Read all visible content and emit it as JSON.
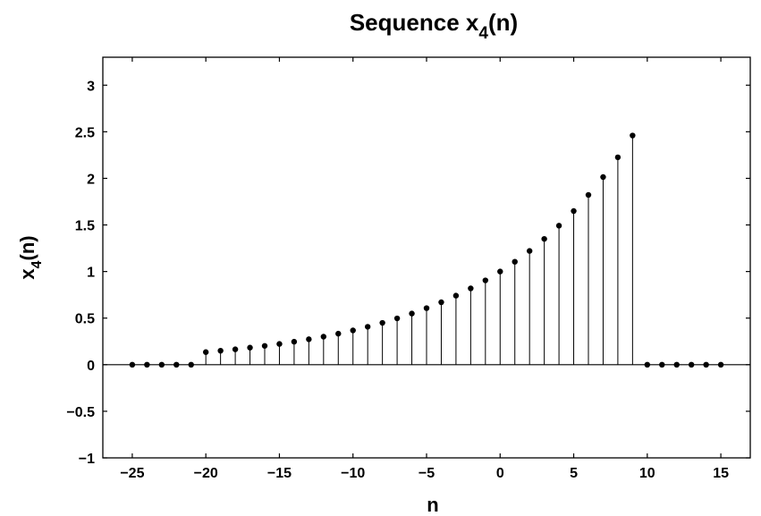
{
  "chart_data": {
    "type": "stem",
    "title": {
      "main": "Sequence x",
      "sub": "4",
      "tail": "(n)"
    },
    "xlabel": "n",
    "ylabel": {
      "main": "x",
      "sub": "4",
      "tail": "(n)"
    },
    "xlim": [
      -27,
      17
    ],
    "ylim": [
      -1,
      3.3
    ],
    "x_ticks": [
      -25,
      -20,
      -15,
      -10,
      -5,
      0,
      5,
      10,
      15
    ],
    "x_tick_labels": [
      "−25",
      "−20",
      "−15",
      "−10",
      "−5",
      "0",
      "5",
      "10",
      "15"
    ],
    "y_ticks": [
      -1,
      -0.5,
      0,
      0.5,
      1,
      1.5,
      2,
      2.5,
      3
    ],
    "y_tick_labels": [
      "−1",
      "−0.5",
      "0",
      "0.5",
      "1",
      "1.5",
      "2",
      "2.5",
      "3"
    ],
    "grid": false,
    "color": "#000000",
    "x": [
      -25,
      -24,
      -23,
      -22,
      -21,
      -20,
      -19,
      -18,
      -17,
      -16,
      -15,
      -14,
      -13,
      -12,
      -11,
      -10,
      -9,
      -8,
      -7,
      -6,
      -5,
      -4,
      -3,
      -2,
      -1,
      0,
      1,
      2,
      3,
      4,
      5,
      6,
      7,
      8,
      9,
      10,
      11,
      12,
      13,
      14,
      15
    ],
    "y": [
      0,
      0,
      0,
      0,
      0,
      0.135,
      0.15,
      0.165,
      0.183,
      0.202,
      0.223,
      0.247,
      0.273,
      0.301,
      0.333,
      0.368,
      0.407,
      0.449,
      0.497,
      0.549,
      0.607,
      0.67,
      0.741,
      0.819,
      0.905,
      1.0,
      1.105,
      1.221,
      1.35,
      1.492,
      1.649,
      1.822,
      2.014,
      2.226,
      2.46,
      0,
      0,
      0,
      0,
      0,
      0
    ]
  }
}
